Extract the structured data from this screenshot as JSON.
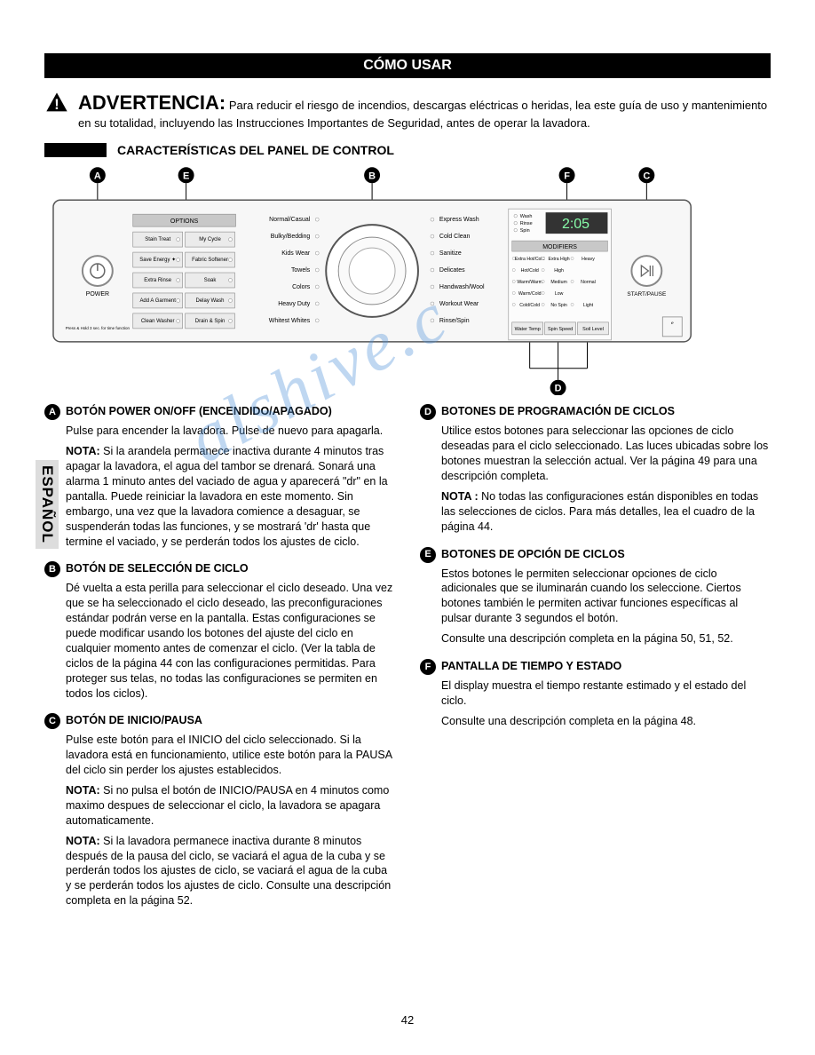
{
  "header": "CÓMO USAR",
  "warning": {
    "title": "ADVERTENCIA:",
    "body": "Para reducir el riesgo de incendios, descargas eléctricas o heridas, lea este guía de uso y mantenimiento en su totalidad, incluyendo las Instrucciones Importantes de Seguridad, antes de operar la lavadora."
  },
  "subheader": "CARACTERÍSTICAS DEL PANEL DE CONTROL",
  "sideTab": "ESPAÑOL",
  "pageNumber": "42",
  "callouts": [
    "A",
    "E",
    "B",
    "F",
    "C",
    "D"
  ],
  "panel": {
    "powerLabel": "POWER",
    "powerNote": "Press & Hold 3 sec. for time function",
    "startLabel": "START/PAUSE",
    "optionsHeader": "OPTIONS",
    "optionsGrid": [
      [
        "Stain Treat",
        "My Cycle"
      ],
      [
        "Save Energy ✦",
        "Fabric Softener"
      ],
      [
        "Extra Rinse",
        "Soak"
      ],
      [
        "Add A Garment",
        "Delay Wash"
      ],
      [
        "Clean Washer",
        "Drain & Spin"
      ]
    ],
    "optionsSub": [
      "",
      "PGM Save",
      "Water Plus",
      "",
      "Chime",
      "",
      "",
      "Control Lock"
    ],
    "cyclesLeft": [
      "Normal/Casual",
      "Bulky/Bedding",
      "Kids Wear",
      "Towels",
      "Colors",
      "Heavy Duty",
      "Whitest Whites"
    ],
    "cyclesRight": [
      "Express Wash",
      "Cold Clean",
      "Sanitize",
      "Delicates",
      "Handwash/Wool",
      "Workout Wear",
      "Rinse/Spin"
    ],
    "displayIndicators": [
      "Wash",
      "Rinse",
      "Spin"
    ],
    "displayTime": "2:05",
    "modifiersHeader": "MODIFIERS",
    "modifiersRows": [
      [
        "Extra Hot/Cold",
        "Extra High",
        "Heavy"
      ],
      [
        "Hot/Cold",
        "High",
        ""
      ],
      [
        "Warm/Warm",
        "Medium",
        "Normal"
      ],
      [
        "Warm/Cold",
        "Low",
        ""
      ],
      [
        "Cold/Cold",
        "No Spin",
        "Light"
      ]
    ],
    "modifierButtons": [
      "Water Temp",
      "Spin Speed",
      "Soil Level"
    ]
  },
  "sections": {
    "A": {
      "title": "BOTÓN POWER ON/OFF (ENCENDIDO/APAGADO)",
      "paras": [
        "Pulse para encender la lavadora. Pulse de nuevo para apagarla.",
        "<b>NOTA:</b> Si la arandela permanece inactiva durante 4 minutos tras apagar la lavadora, el agua del tambor se drenará. Sonará una alarma 1 minuto antes del vaciado de agua y aparecerá \"dr\" en la pantalla. Puede reiniciar la lavadora en este momento. Sin embargo, una vez que la lavadora comience a desaguar, se suspenderán todas las funciones, y se mostrará 'dr' hasta que termine el vaciado, y se perderán todos los ajustes de ciclo."
      ]
    },
    "B": {
      "title": "BOTÓN DE SELECCIÓN DE CICLO",
      "paras": [
        "Dé vuelta a esta perilla para seleccionar el ciclo deseado. Una vez que se ha seleccionado el ciclo deseado, las preconfiguraciones estándar podrán verse en la pantalla. Estas configuraciones se puede modificar usando los botones del ajuste del ciclo en cualquier momento antes de comenzar el ciclo. (Ver la tabla de ciclos de la página 44 con las configuraciones permitidas. Para proteger sus telas, no todas las configuraciones se permiten en todos los ciclos)."
      ]
    },
    "C": {
      "title": "BOTÓN DE INICIO/PAUSA",
      "paras": [
        "Pulse este botón para el INICIO del ciclo seleccionado. Si la lavadora está en funcionamiento, utilice este botón para la PAUSA del ciclo sin perder los ajustes establecidos.",
        "<b>NOTA:</b> Si no pulsa el botón de INICIO/PAUSA en 4 minutos como maximo despues de seleccionar el ciclo, la lavadora se apagara automaticamente.",
        "<b>NOTA:</b> Si la lavadora permanece inactiva durante 8 minutos después de la pausa del ciclo, se vaciará el agua de la cuba y se perderán todos los ajustes de ciclo, se vaciará el agua de la cuba y se perderán todos los ajustes de ciclo. Consulte una descripción completa en la página 52."
      ]
    },
    "D": {
      "title": "BOTONES DE PROGRAMACIÓN DE CICLOS",
      "paras": [
        "Utilice estos botones para seleccionar las opciones de ciclo deseadas para el ciclo seleccionado. Las luces ubicadas sobre los botones muestran la selección actual. Ver la página 49 para una descripción completa.",
        "<b>NOTA :</b> No todas las configuraciones están disponibles en todas las selecciones de ciclos. Para más detalles, lea el cuadro de la página 44."
      ]
    },
    "E": {
      "title": "BOTONES DE OPCIÓN DE CICLOS",
      "paras": [
        "Estos botones le permiten seleccionar opciones de ciclo adicionales que se iluminarán cuando los seleccione. Ciertos botones también le permiten activar funciones específicas al pulsar durante 3 segundos el botón.",
        "Consulte una descripción completa en la página 50, 51, 52."
      ]
    },
    "F": {
      "title": "PANTALLA DE TIEMPO Y ESTADO",
      "paras": [
        "El display muestra el tiempo restante estimado y el estado del ciclo.",
        "Consulte una descripción completa en la página 48."
      ]
    }
  },
  "colors": {
    "watermark": "#4a90d9",
    "panelBorder": "#555555",
    "panelBg": "#f7f7f7",
    "buttonFill": "#ebebeb",
    "buttonStroke": "#888888",
    "optHeader": "#c8c8c8"
  }
}
